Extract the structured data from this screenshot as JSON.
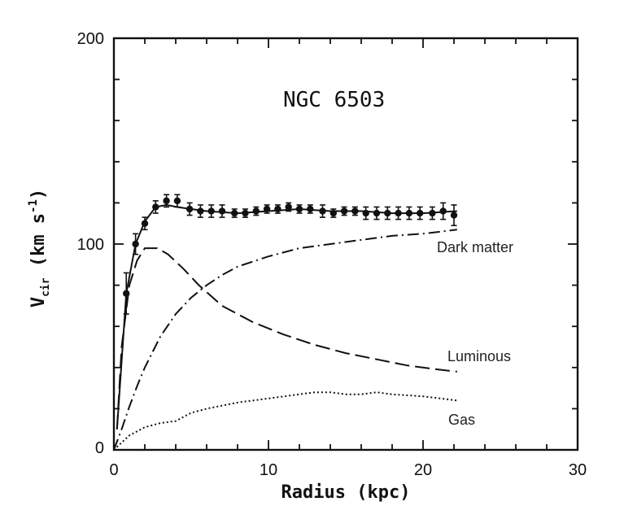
{
  "chart_data": {
    "type": "line",
    "title": "NGC 6503",
    "xlabel": "Radius (kpc)",
    "ylabel": "V",
    "ylabel_subscript": "cir",
    "ylabel_units": "(km s",
    "ylabel_units_exp": "-1",
    "ylabel_units_close": ")",
    "xlim": [
      0,
      30
    ],
    "ylim": [
      0,
      200
    ],
    "x_ticks": [
      0,
      10,
      20,
      30
    ],
    "y_ticks": [
      0,
      100,
      200
    ],
    "x_tick_labels": [
      "0",
      "10",
      "20",
      "30"
    ],
    "y_tick_labels": [
      "0",
      "100",
      "200"
    ],
    "grid": false,
    "observed_points": [
      {
        "x": 0.8,
        "y": 76,
        "err": 10
      },
      {
        "x": 1.4,
        "y": 100,
        "err": 5
      },
      {
        "x": 2.0,
        "y": 110,
        "err": 3
      },
      {
        "x": 2.7,
        "y": 118,
        "err": 3
      },
      {
        "x": 3.4,
        "y": 121,
        "err": 3
      },
      {
        "x": 4.1,
        "y": 121,
        "err": 3
      },
      {
        "x": 4.9,
        "y": 117,
        "err": 3
      },
      {
        "x": 5.6,
        "y": 116,
        "err": 3
      },
      {
        "x": 6.3,
        "y": 116,
        "err": 3
      },
      {
        "x": 7.0,
        "y": 116,
        "err": 3
      },
      {
        "x": 7.8,
        "y": 115,
        "err": 2
      },
      {
        "x": 8.5,
        "y": 115,
        "err": 2
      },
      {
        "x": 9.2,
        "y": 116,
        "err": 2
      },
      {
        "x": 9.9,
        "y": 117,
        "err": 2
      },
      {
        "x": 10.6,
        "y": 117,
        "err": 2
      },
      {
        "x": 11.3,
        "y": 118,
        "err": 2
      },
      {
        "x": 12.0,
        "y": 117,
        "err": 2
      },
      {
        "x": 12.7,
        "y": 117,
        "err": 2
      },
      {
        "x": 13.5,
        "y": 116,
        "err": 3
      },
      {
        "x": 14.2,
        "y": 115,
        "err": 2
      },
      {
        "x": 14.9,
        "y": 116,
        "err": 2
      },
      {
        "x": 15.6,
        "y": 116,
        "err": 2
      },
      {
        "x": 16.3,
        "y": 115,
        "err": 3
      },
      {
        "x": 17.0,
        "y": 115,
        "err": 3
      },
      {
        "x": 17.7,
        "y": 115,
        "err": 3
      },
      {
        "x": 18.4,
        "y": 115,
        "err": 3
      },
      {
        "x": 19.1,
        "y": 115,
        "err": 3
      },
      {
        "x": 19.8,
        "y": 115,
        "err": 3
      },
      {
        "x": 20.6,
        "y": 115,
        "err": 3
      },
      {
        "x": 21.3,
        "y": 116,
        "err": 4
      },
      {
        "x": 22.0,
        "y": 114,
        "err": 5
      }
    ],
    "series": [
      {
        "name": "",
        "style": "solid",
        "x": [
          0.2,
          0.8,
          1.4,
          2.0,
          2.7,
          3.4,
          4.1,
          5.0,
          6.0,
          8.0,
          10.0,
          12.0,
          14.0,
          16.0,
          18.0,
          20.0,
          22.2
        ],
        "y": [
          10,
          76,
          100,
          111,
          118,
          119,
          118,
          117,
          116,
          115,
          116,
          117,
          116,
          116,
          115,
          115,
          116
        ]
      },
      {
        "name": "Dark matter",
        "style": "dashdot",
        "x": [
          0,
          0.5,
          1,
          1.5,
          2,
          3,
          4,
          5,
          6,
          7,
          8,
          10,
          12,
          14,
          16,
          18,
          20,
          22.2
        ],
        "y": [
          0,
          10,
          21,
          31,
          40,
          55,
          66,
          74,
          80,
          85,
          89,
          94,
          98,
          100,
          102,
          104,
          105,
          107
        ]
      },
      {
        "name": "Luminous",
        "style": "dashed",
        "x": [
          0.2,
          0.5,
          1,
          1.5,
          2,
          2.8,
          3.5,
          4.5,
          5.5,
          7,
          9,
          11,
          13,
          15,
          17,
          19,
          21,
          22.2
        ],
        "y": [
          10,
          50,
          80,
          92,
          98,
          98,
          95,
          88,
          80,
          70,
          62,
          56,
          51,
          47,
          44,
          41,
          39,
          38
        ]
      },
      {
        "name": "Gas",
        "style": "dotted",
        "x": [
          0,
          1,
          2,
          3,
          4,
          5,
          6,
          8,
          10,
          12,
          13,
          14,
          15,
          16,
          17,
          18,
          20,
          22.2
        ],
        "y": [
          0,
          7,
          11,
          13,
          14,
          18,
          20,
          23,
          25,
          27,
          28,
          28,
          27,
          27,
          28,
          27,
          26,
          24
        ]
      }
    ],
    "series_labels": {
      "dark_matter": "Dark matter",
      "luminous": "Luminous",
      "gas": "Gas"
    }
  }
}
